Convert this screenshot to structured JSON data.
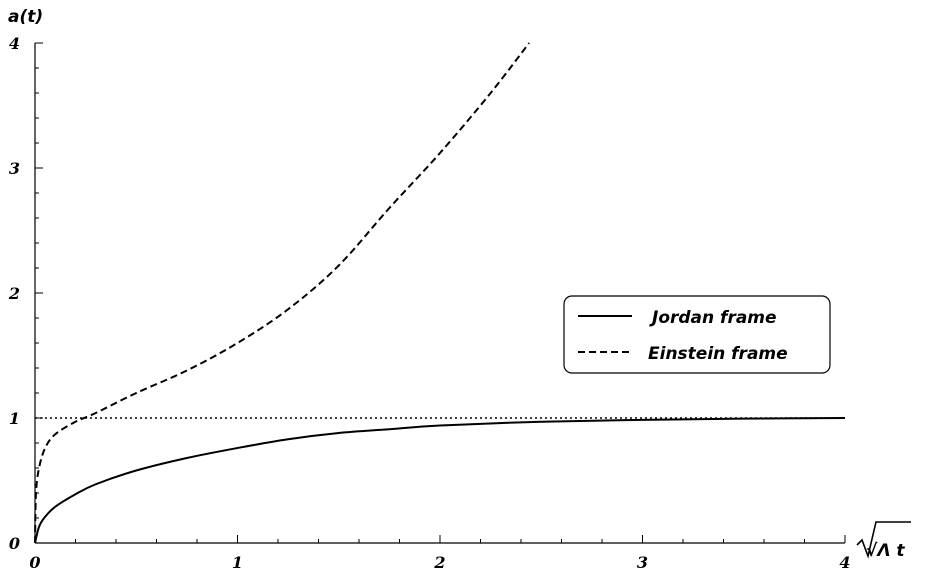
{
  "chart_data": {
    "type": "line",
    "ylabel": "a(t)",
    "xlabel": "√Λ t",
    "xlim": [
      0,
      4
    ],
    "ylim": [
      0,
      4
    ],
    "x_ticks": [
      "0",
      "1",
      "2",
      "3",
      "4"
    ],
    "y_ticks": [
      "0",
      "1",
      "2",
      "3",
      "4"
    ],
    "grid": false,
    "legend_position": "right",
    "series": [
      {
        "name": "Jordan frame",
        "style": "solid",
        "color": "#000000",
        "points": [
          [
            0,
            0
          ],
          [
            0.02,
            0.13
          ],
          [
            0.05,
            0.21
          ],
          [
            0.1,
            0.29
          ],
          [
            0.2,
            0.39
          ],
          [
            0.3,
            0.47
          ],
          [
            0.5,
            0.58
          ],
          [
            0.75,
            0.68
          ],
          [
            1.0,
            0.76
          ],
          [
            1.25,
            0.83
          ],
          [
            1.5,
            0.88
          ],
          [
            1.75,
            0.91
          ],
          [
            2.0,
            0.94
          ],
          [
            2.5,
            0.97
          ],
          [
            3.0,
            0.985
          ],
          [
            3.5,
            0.995
          ],
          [
            4.0,
            1.0
          ]
        ]
      },
      {
        "name": "Einstein frame",
        "style": "dashed",
        "color": "#000000",
        "points": [
          [
            0,
            0
          ],
          [
            0.005,
            0.4
          ],
          [
            0.02,
            0.6
          ],
          [
            0.05,
            0.76
          ],
          [
            0.1,
            0.87
          ],
          [
            0.2,
            0.97
          ],
          [
            0.3,
            1.04
          ],
          [
            0.5,
            1.2
          ],
          [
            0.75,
            1.38
          ],
          [
            1.0,
            1.6
          ],
          [
            1.25,
            1.87
          ],
          [
            1.5,
            2.22
          ],
          [
            1.75,
            2.68
          ],
          [
            2.0,
            3.12
          ],
          [
            2.25,
            3.6
          ],
          [
            2.44,
            4.0
          ]
        ]
      },
      {
        "style": "dotted",
        "color": "#000000",
        "points": [
          [
            0,
            1
          ],
          [
            4,
            1
          ]
        ]
      }
    ]
  }
}
